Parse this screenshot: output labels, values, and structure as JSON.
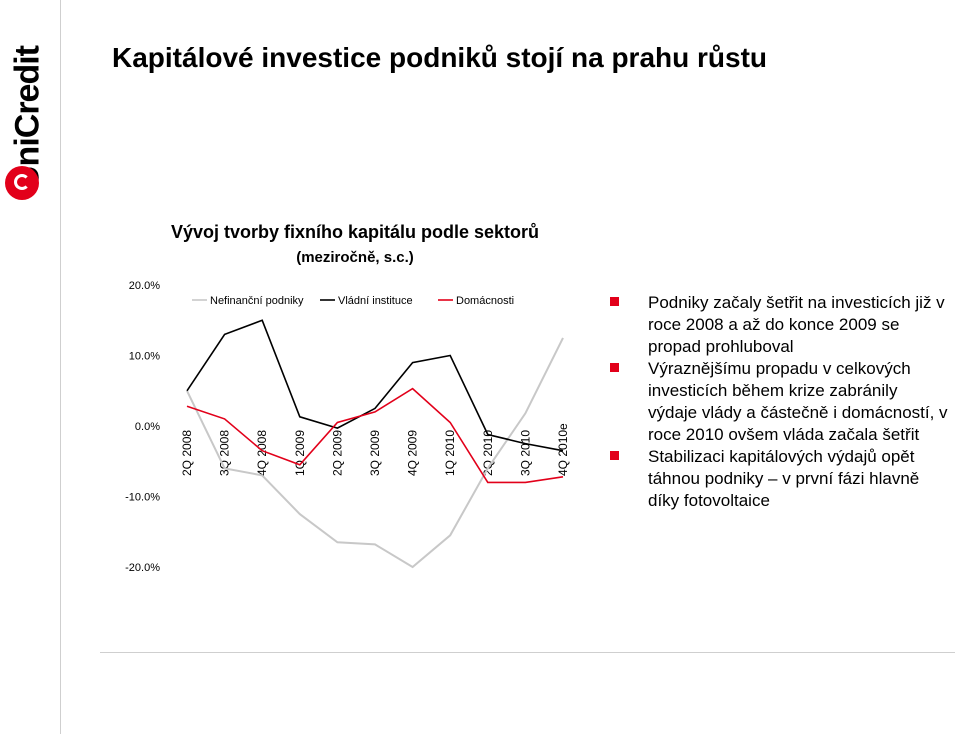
{
  "page": {
    "title": "Kapitálové investice podniků stojí na prahu růstu",
    "logo_text": "UniCredit"
  },
  "chart_data": {
    "type": "line",
    "title": "Vývoj tvorby fixního kapitálu podle sektorů",
    "subtitle": "(meziročně, s.c.)",
    "categories": [
      "2Q 2008",
      "3Q 2008",
      "4Q 2008",
      "1Q 2009",
      "2Q 2009",
      "3Q 2009",
      "4Q 2009",
      "1Q 2010",
      "2Q 2010",
      "3Q 2010",
      "4Q 2010e"
    ],
    "series": [
      {
        "name": "Nefinanční podniky",
        "color": "#c8c8c8",
        "values": [
          5.0,
          -6.0,
          -7.0,
          -12.5,
          -16.5,
          -16.8,
          -20.0,
          -15.5,
          -6.0,
          1.8,
          12.5
        ]
      },
      {
        "name": "Vládní instituce",
        "color": "#000000",
        "values": [
          5.0,
          13.0,
          15.0,
          1.3,
          -0.3,
          2.5,
          9.0,
          10.0,
          -1.2,
          -2.5,
          -3.5
        ]
      },
      {
        "name": "Domácnosti",
        "color": "#e2001a",
        "values": [
          2.8,
          1.0,
          -3.5,
          -5.5,
          0.5,
          2.0,
          5.3,
          0.5,
          -8.0,
          -8.0,
          -7.2
        ]
      }
    ],
    "y_ticks": [
      "20.0%",
      "10.0%",
      "0.0%",
      "-10.0%",
      "-20.0%"
    ],
    "ylim": [
      -20,
      20
    ],
    "legend_position": "top"
  },
  "bullets": [
    "Podniky začaly šetřit na investicích již v roce 2008 a až do konce 2009 se propad prohluboval",
    "Výraznějšímu propadu v celkových investicích během krize zabránily výdaje vlády a částečně i domácností, v roce 2010 ovšem vláda začala šetřit",
    "Stabilizaci kapitálových výdajů opět táhnou podniky – v první fázi hlavně díky fotovoltaice"
  ],
  "colors": {
    "accent": "#e2001a"
  }
}
